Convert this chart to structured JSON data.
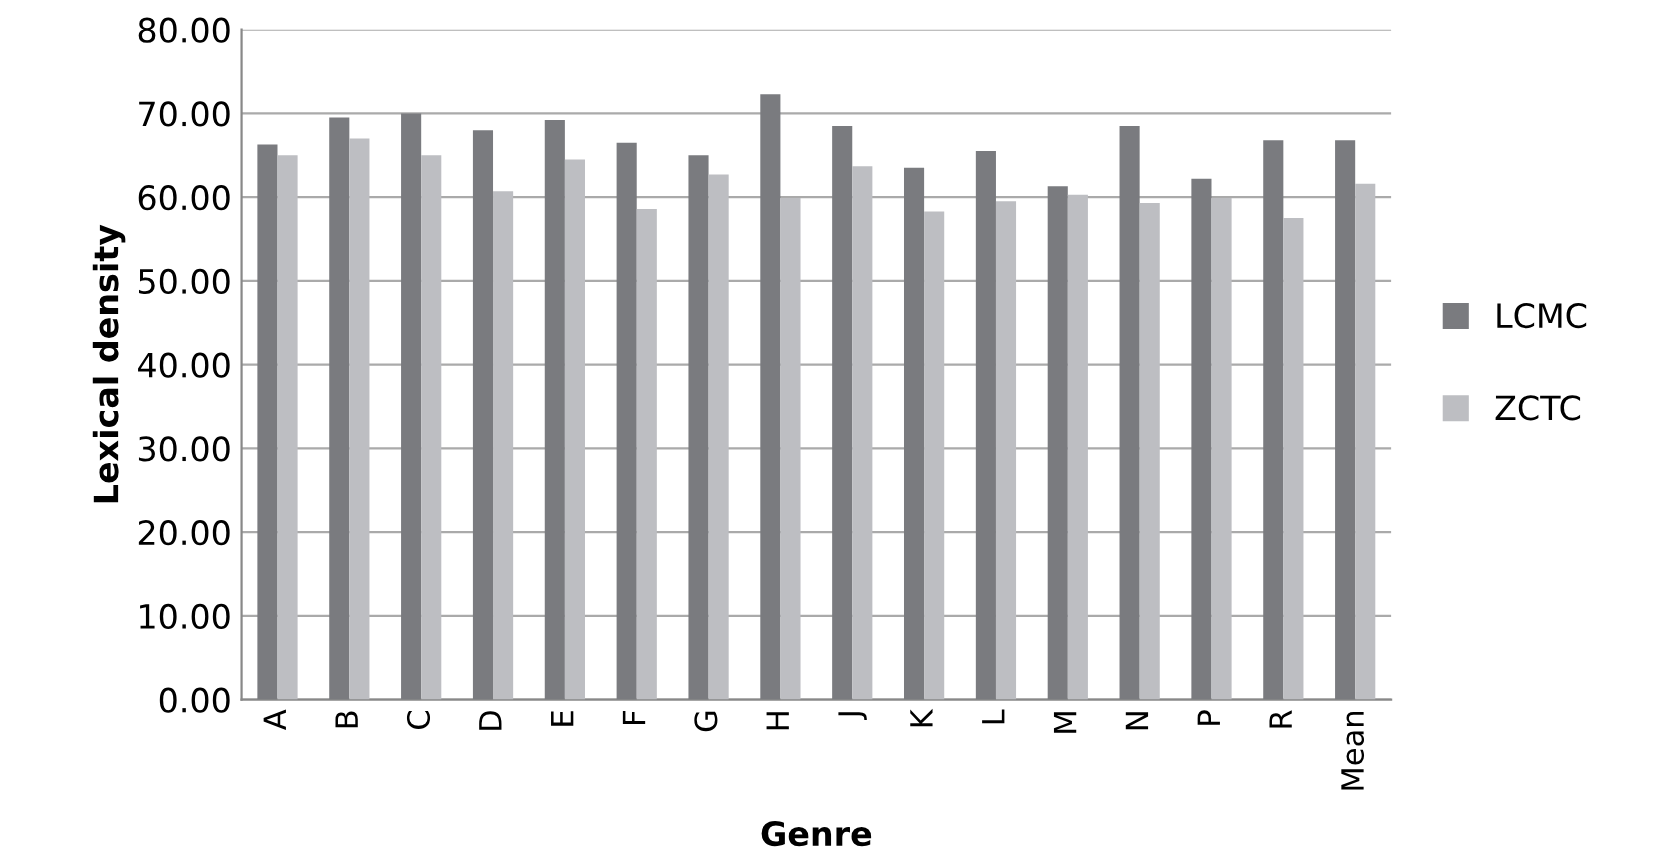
{
  "chart_data": {
    "type": "bar",
    "xlabel": "Genre",
    "ylabel": "Lexical density",
    "categories": [
      "A",
      "B",
      "C",
      "D",
      "E",
      "F",
      "G",
      "H",
      "J",
      "K",
      "L",
      "M",
      "N",
      "P",
      "R",
      "Mean"
    ],
    "series": [
      {
        "name": "LCMC",
        "color": "#7a7b7f",
        "values": [
          66.3,
          69.5,
          70.0,
          68.0,
          69.2,
          66.5,
          65.0,
          72.3,
          68.5,
          63.5,
          65.5,
          61.3,
          68.5,
          62.2,
          66.8,
          66.8
        ]
      },
      {
        "name": "ZCTC",
        "color": "#bdbec2",
        "values": [
          65.0,
          67.0,
          65.0,
          60.7,
          64.5,
          58.6,
          62.7,
          59.9,
          63.7,
          58.3,
          59.5,
          60.3,
          59.3,
          59.9,
          57.5,
          61.6
        ]
      }
    ],
    "ylim": [
      0,
      80
    ],
    "yticks": [
      {
        "value": 0,
        "label": "0.00"
      },
      {
        "value": 10,
        "label": "10.00"
      },
      {
        "value": 20,
        "label": "20.00"
      },
      {
        "value": 30,
        "label": "30.00"
      },
      {
        "value": 40,
        "label": "40.00"
      },
      {
        "value": 50,
        "label": "50.00"
      },
      {
        "value": 60,
        "label": "60.00"
      },
      {
        "value": 70,
        "label": "70.00"
      },
      {
        "value": 80,
        "label": "80.00"
      }
    ],
    "grid": "y",
    "legend": "right"
  }
}
